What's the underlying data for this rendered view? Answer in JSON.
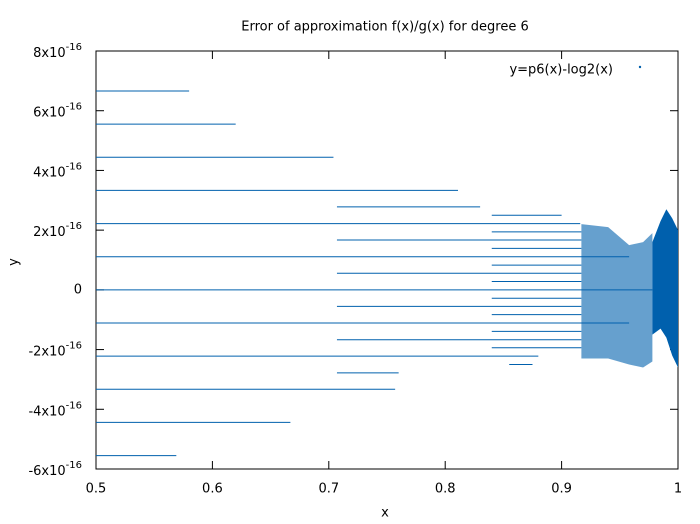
{
  "chart_data": {
    "type": "segments",
    "title": "Error of approximation f(x)/g(x) for degree 6",
    "xlabel": "x",
    "ylabel": "y",
    "xlim": [
      0.5,
      1
    ],
    "ylim": [
      -6e-16,
      8e-16
    ],
    "xticks": [
      0.5,
      0.6,
      0.7,
      0.8,
      0.9,
      1
    ],
    "yticks": [
      {
        "value": -6e-16,
        "label": "-6x10",
        "exponent": "-16"
      },
      {
        "value": -4e-16,
        "label": "-4x10",
        "exponent": "-16"
      },
      {
        "value": -2e-16,
        "label": "-2x10",
        "exponent": "-16"
      },
      0,
      {
        "value": 2e-16,
        "label": "2x10",
        "exponent": "-16"
      },
      {
        "value": 4e-16,
        "label": "4x10",
        "exponent": "-16"
      },
      {
        "value": 6e-16,
        "label": "6x10",
        "exponent": "-16"
      },
      {
        "value": 8e-16,
        "label": "8x10",
        "exponent": "-16"
      }
    ],
    "legend": "top-right",
    "series": [
      {
        "name": "y=p6(x)-log2(x)",
        "color": "#0060ad",
        "segments": [
          {
            "x": [
              0.5,
              0.58
            ],
            "y": 6.66e-16
          },
          {
            "x": [
              0.5,
              0.62
            ],
            "y": 5.55e-16
          },
          {
            "x": [
              0.5,
              0.704
            ],
            "y": 4.44e-16
          },
          {
            "x": [
              0.5,
              0.811
            ],
            "y": 3.33e-16
          },
          {
            "x": [
              0.5,
              0.916
            ],
            "y": 2.22e-16
          },
          {
            "x": [
              0.5,
              0.958
            ],
            "y": 1.11e-16
          },
          {
            "x": [
              0.5,
              0.978
            ],
            "y": 0
          },
          {
            "x": [
              0.5,
              0.958
            ],
            "y": -1.11e-16
          },
          {
            "x": [
              0.5,
              0.88
            ],
            "y": -2.22e-16
          },
          {
            "x": [
              0.5,
              0.757
            ],
            "y": -3.33e-16
          },
          {
            "x": [
              0.5,
              0.667
            ],
            "y": -4.44e-16
          },
          {
            "x": [
              0.5,
              0.569
            ],
            "y": -5.55e-16
          },
          {
            "x": [
              0.707,
              0.83
            ],
            "y": 2.78e-16
          },
          {
            "x": [
              0.707,
              0.917
            ],
            "y": 1.67e-16
          },
          {
            "x": [
              0.707,
              0.917
            ],
            "y": 5.55e-17
          },
          {
            "x": [
              0.707,
              0.917
            ],
            "y": -5.55e-17
          },
          {
            "x": [
              0.707,
              0.917
            ],
            "y": -1.67e-16
          },
          {
            "x": [
              0.707,
              0.76
            ],
            "y": -2.78e-16
          },
          {
            "x": [
              0.84,
              0.9
            ],
            "y": 2.5e-16
          },
          {
            "x": [
              0.84,
              0.917
            ],
            "y": 1.94e-16
          },
          {
            "x": [
              0.84,
              0.917
            ],
            "y": 1.39e-16
          },
          {
            "x": [
              0.84,
              0.917
            ],
            "y": 8.3e-17
          },
          {
            "x": [
              0.84,
              0.917
            ],
            "y": 2.8e-17
          },
          {
            "x": [
              0.84,
              0.917
            ],
            "y": -2.8e-17
          },
          {
            "x": [
              0.84,
              0.917
            ],
            "y": -8.3e-17
          },
          {
            "x": [
              0.84,
              0.917
            ],
            "y": -1.39e-16
          },
          {
            "x": [
              0.84,
              0.917
            ],
            "y": -1.94e-16
          },
          {
            "x": [
              0.855,
              0.875
            ],
            "y": -2.5e-16
          }
        ],
        "bands": [
          {
            "x": [
              0.917,
              0.94,
              0.958,
              0.97,
              0.978
            ],
            "upper": [
              2.2e-16,
              2.1e-16,
              1.5e-16,
              1.6e-16,
              1.9e-16
            ],
            "lower": [
              -2.3e-16,
              -2.3e-16,
              -2.5e-16,
              -2.6e-16,
              -2.4e-16
            ]
          },
          {
            "x": [
              0.978,
              0.985,
              0.99,
              0.995,
              1
            ],
            "upper": [
              1.6e-16,
              2.3e-16,
              2.7e-16,
              2.4e-16,
              2e-16
            ],
            "lower": [
              -1.5e-16,
              -1.3e-16,
              -1.6e-16,
              -2.2e-16,
              -2.6e-16
            ]
          }
        ]
      }
    ]
  }
}
